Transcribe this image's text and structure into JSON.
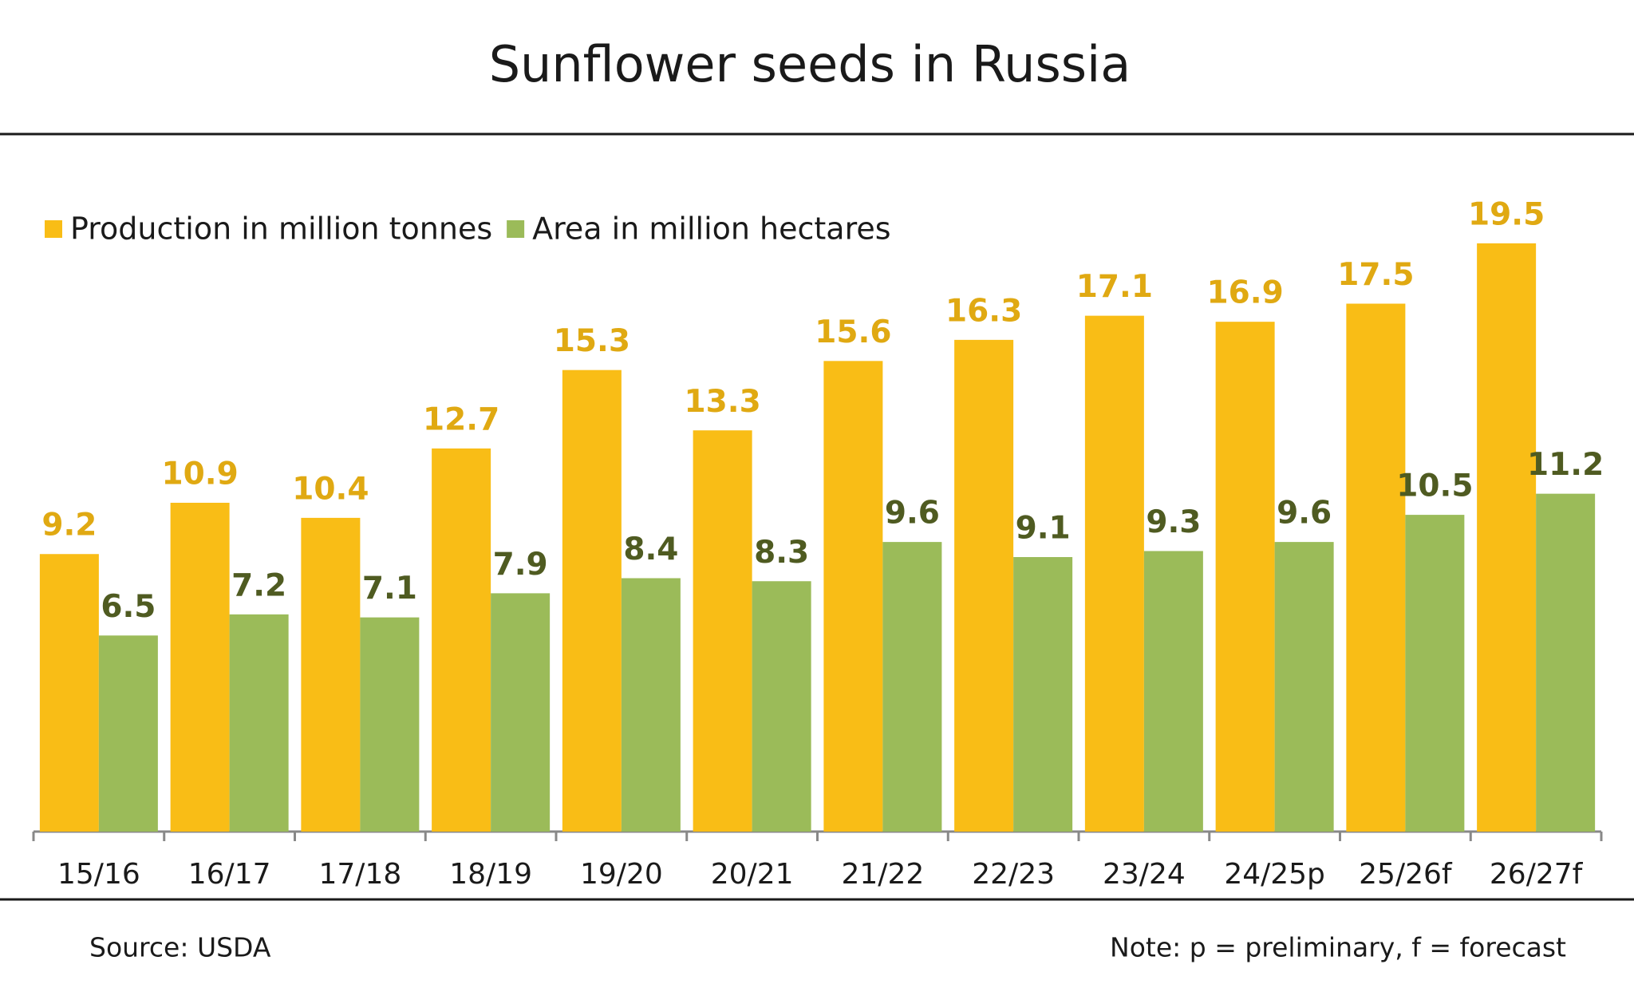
{
  "chart_data": {
    "type": "bar",
    "title": "Sunflower seeds in Russia",
    "categories": [
      "15/16",
      "16/17",
      "17/18",
      "18/19",
      "19/20",
      "20/21",
      "21/22",
      "22/23",
      "23/24",
      "24/25p",
      "25/26f",
      "26/27f"
    ],
    "series": [
      {
        "name": "Production in million tonnes",
        "color": "#f9bd16",
        "label_color": "#e0a912",
        "values": [
          9.2,
          10.9,
          10.4,
          12.7,
          15.3,
          13.3,
          15.6,
          16.3,
          17.1,
          16.9,
          17.5,
          19.5
        ]
      },
      {
        "name": "Area in million hectares",
        "color": "#9bbb59",
        "label_color": "#4f5b21",
        "values": [
          6.5,
          7.2,
          7.1,
          7.9,
          8.4,
          8.3,
          9.6,
          9.1,
          9.3,
          9.6,
          10.5,
          11.2
        ]
      }
    ],
    "legend": "top-left",
    "source": "Source: USDA",
    "note": "Note: p = preliminary, f = forecast"
  }
}
